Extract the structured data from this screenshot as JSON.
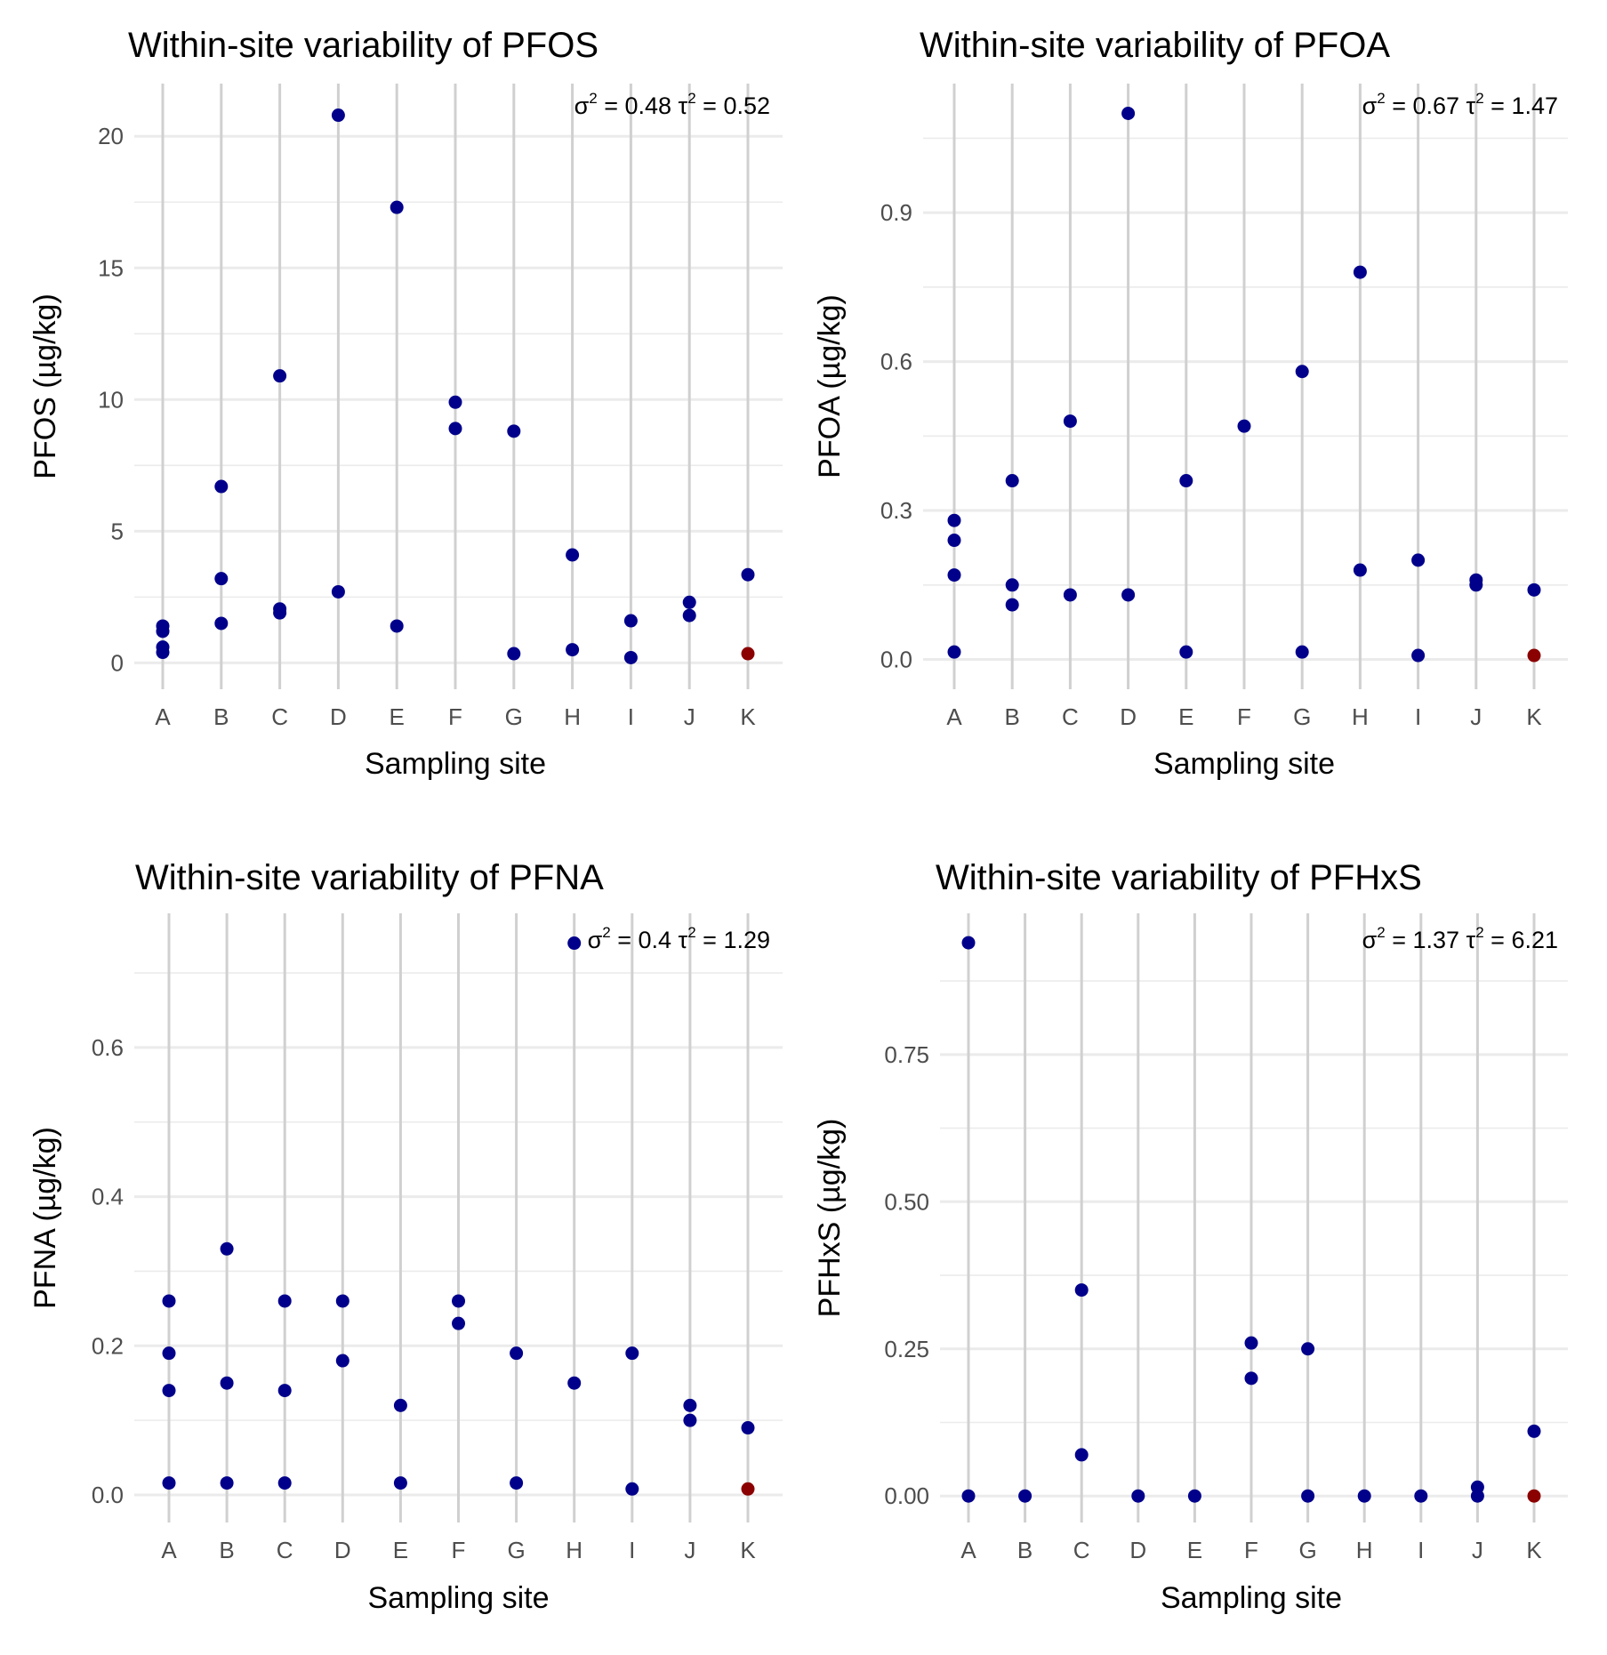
{
  "colors": {
    "point": "#00008B",
    "reference_point": "#8B0000",
    "grid_major": "#EBEBEB",
    "site_line": "#D0D0D0",
    "tick_text": "#4D4D4D"
  },
  "chart_data": [
    {
      "type": "scatter",
      "title": "Within-site variability of PFOS",
      "xlabel": "Sampling site",
      "ylabel": "PFOS (µg/kg)",
      "categories": [
        "A",
        "B",
        "C",
        "D",
        "E",
        "F",
        "G",
        "H",
        "I",
        "J",
        "K"
      ],
      "yticks": [
        0,
        5,
        10,
        15,
        20
      ],
      "ytick_labels": [
        "0",
        "5",
        "10",
        "15",
        "20"
      ],
      "ylim": [
        -1.0,
        22.0
      ],
      "annotation": {
        "sigma2": "0.48",
        "tau2": "0.52"
      },
      "grid": true,
      "points": [
        {
          "site": "A",
          "values": [
            1.4,
            1.2,
            0.6,
            0.4
          ]
        },
        {
          "site": "B",
          "values": [
            6.7,
            3.2,
            1.5
          ]
        },
        {
          "site": "C",
          "values": [
            10.9,
            2.05,
            1.9
          ]
        },
        {
          "site": "D",
          "values": [
            20.8,
            2.7
          ]
        },
        {
          "site": "E",
          "values": [
            17.3,
            1.4
          ]
        },
        {
          "site": "F",
          "values": [
            9.9,
            8.9
          ]
        },
        {
          "site": "G",
          "values": [
            8.8,
            0.35
          ]
        },
        {
          "site": "H",
          "values": [
            4.1,
            0.5
          ]
        },
        {
          "site": "I",
          "values": [
            1.6,
            0.2
          ]
        },
        {
          "site": "J",
          "values": [
            2.3,
            1.8
          ]
        },
        {
          "site": "K",
          "values": [
            3.35
          ]
        }
      ],
      "reference_points": [
        {
          "site": "K",
          "value": 0.35
        }
      ]
    },
    {
      "type": "scatter",
      "title": "Within-site variability of PFOA",
      "xlabel": "Sampling site",
      "ylabel": "PFOA (µg/kg)",
      "categories": [
        "A",
        "B",
        "C",
        "D",
        "E",
        "F",
        "G",
        "H",
        "I",
        "J",
        "K"
      ],
      "yticks": [
        0.0,
        0.3,
        0.6,
        0.9
      ],
      "ytick_labels": [
        "0.0",
        "0.3",
        "0.6",
        "0.9"
      ],
      "ylim": [
        -0.06,
        1.16
      ],
      "annotation": {
        "sigma2": "0.67",
        "tau2": "1.47"
      },
      "grid": true,
      "points": [
        {
          "site": "A",
          "values": [
            0.28,
            0.24,
            0.17,
            0.015
          ]
        },
        {
          "site": "B",
          "values": [
            0.36,
            0.15,
            0.11
          ]
        },
        {
          "site": "C",
          "values": [
            0.48,
            0.13
          ]
        },
        {
          "site": "D",
          "values": [
            1.1,
            0.13
          ]
        },
        {
          "site": "E",
          "values": [
            0.36,
            0.015
          ]
        },
        {
          "site": "F",
          "values": [
            0.47
          ]
        },
        {
          "site": "G",
          "values": [
            0.58,
            0.015
          ]
        },
        {
          "site": "H",
          "values": [
            0.78,
            0.18
          ]
        },
        {
          "site": "I",
          "values": [
            0.2,
            0.008
          ]
        },
        {
          "site": "J",
          "values": [
            0.16,
            0.15
          ]
        },
        {
          "site": "K",
          "values": [
            0.14
          ]
        }
      ],
      "reference_points": [
        {
          "site": "K",
          "value": 0.008
        }
      ]
    },
    {
      "type": "scatter",
      "title": "Within-site variability of PFNA",
      "xlabel": "Sampling site",
      "ylabel": "PFNA (µg/kg)",
      "categories": [
        "A",
        "B",
        "C",
        "D",
        "E",
        "F",
        "G",
        "H",
        "I",
        "J",
        "K"
      ],
      "yticks": [
        0.0,
        0.2,
        0.4,
        0.6
      ],
      "ytick_labels": [
        "0.0",
        "0.2",
        "0.4",
        "0.6"
      ],
      "ylim": [
        -0.037,
        0.78
      ],
      "annotation": {
        "sigma2": "0.4",
        "tau2": "1.29"
      },
      "grid": true,
      "points": [
        {
          "site": "A",
          "values": [
            0.26,
            0.19,
            0.14,
            0.016
          ]
        },
        {
          "site": "B",
          "values": [
            0.33,
            0.15,
            0.016
          ]
        },
        {
          "site": "C",
          "values": [
            0.26,
            0.14,
            0.016
          ]
        },
        {
          "site": "D",
          "values": [
            0.26,
            0.18
          ]
        },
        {
          "site": "E",
          "values": [
            0.12,
            0.016
          ]
        },
        {
          "site": "F",
          "values": [
            0.26,
            0.23
          ]
        },
        {
          "site": "G",
          "values": [
            0.19,
            0.016
          ]
        },
        {
          "site": "H",
          "values": [
            0.74,
            0.15
          ]
        },
        {
          "site": "I",
          "values": [
            0.19,
            0.008
          ]
        },
        {
          "site": "J",
          "values": [
            0.12,
            0.1
          ]
        },
        {
          "site": "K",
          "values": [
            0.09
          ]
        }
      ],
      "reference_points": [
        {
          "site": "K",
          "value": 0.008
        }
      ]
    },
    {
      "type": "scatter",
      "title": "Within-site variability of PFHxS",
      "xlabel": "Sampling site",
      "ylabel": "PFHxS (µg/kg)",
      "categories": [
        "A",
        "B",
        "C",
        "D",
        "E",
        "F",
        "G",
        "H",
        "I",
        "J",
        "K"
      ],
      "yticks": [
        0.0,
        0.25,
        0.5,
        0.75
      ],
      "ytick_labels": [
        "0.00",
        "0.25",
        "0.50",
        "0.75"
      ],
      "ylim": [
        -0.045,
        0.99
      ],
      "annotation": {
        "sigma2": "1.37",
        "tau2": "6.21"
      },
      "grid": true,
      "points": [
        {
          "site": "A",
          "values": [
            0.94,
            0.0
          ]
        },
        {
          "site": "B",
          "values": [
            0.0
          ]
        },
        {
          "site": "C",
          "values": [
            0.35,
            0.07
          ]
        },
        {
          "site": "D",
          "values": [
            0.0
          ]
        },
        {
          "site": "E",
          "values": [
            0.0
          ]
        },
        {
          "site": "F",
          "values": [
            0.26,
            0.2
          ]
        },
        {
          "site": "G",
          "values": [
            0.25,
            0.0
          ]
        },
        {
          "site": "H",
          "values": [
            0.0
          ]
        },
        {
          "site": "I",
          "values": [
            0.0
          ]
        },
        {
          "site": "J",
          "values": [
            0.015,
            0.0
          ]
        },
        {
          "site": "K",
          "values": [
            0.11
          ]
        }
      ],
      "reference_points": [
        {
          "site": "K",
          "value": 0.0
        }
      ]
    }
  ]
}
